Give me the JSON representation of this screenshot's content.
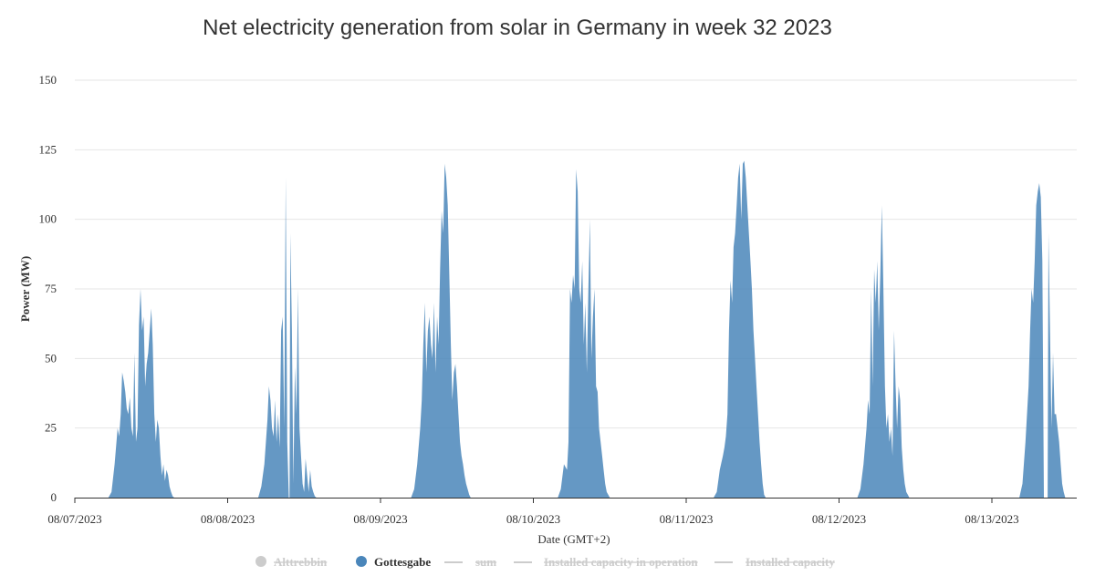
{
  "chart_data": {
    "type": "area",
    "title": "Net electricity generation from solar in Germany in week 32 2023",
    "xlabel": "Date (GMT+2)",
    "ylabel": "Power (MW)",
    "ylim": [
      0,
      150
    ],
    "yticks": [
      0,
      25,
      50,
      75,
      100,
      125,
      150
    ],
    "xticks": [
      "08/07/2023",
      "08/08/2023",
      "08/09/2023",
      "08/10/2023",
      "08/11/2023",
      "08/12/2023",
      "08/13/2023"
    ],
    "xrange_days": [
      0,
      6.55
    ],
    "grid": true,
    "legend_placement": "bottom",
    "colors": {
      "Gottesgabe": "#4a86ba",
      "disabled": "#cccccc",
      "grid": "#e6e6e6",
      "axis": "#333333"
    },
    "legend": [
      {
        "name": "Alttrebbin",
        "symbol": "circle",
        "enabled": false
      },
      {
        "name": "Gottesgabe",
        "symbol": "circle",
        "enabled": true
      },
      {
        "name": "sum",
        "symbol": "line",
        "enabled": false
      },
      {
        "name": "Installed capacity in operation",
        "symbol": "line",
        "enabled": false
      },
      {
        "name": "Installed capacity",
        "symbol": "line",
        "enabled": false
      }
    ],
    "series": [
      {
        "name": "Gottesgabe",
        "days": [
          {
            "x": [
              0.0,
              0.22,
              0.24,
              0.26,
              0.28,
              0.29,
              0.3,
              0.31,
              0.32,
              0.33,
              0.34,
              0.35,
              0.36,
              0.37,
              0.38,
              0.39,
              0.4,
              0.41,
              0.42,
              0.43,
              0.44,
              0.45,
              0.46,
              0.47,
              0.48,
              0.49,
              0.5,
              0.51,
              0.52,
              0.53,
              0.54,
              0.55,
              0.56,
              0.57,
              0.58,
              0.59,
              0.6,
              0.61,
              0.62,
              0.63,
              0.64,
              0.65,
              0.66,
              0.67,
              0.68,
              0.69,
              0.7,
              0.72,
              1.0
            ],
            "y": [
              0,
              0,
              2,
              12,
              25,
              22,
              30,
              45,
              42,
              38,
              32,
              30,
              36,
              25,
              22,
              52,
              20,
              25,
              62,
              75,
              60,
              65,
              40,
              48,
              52,
              60,
              68,
              55,
              30,
              20,
              28,
              25,
              15,
              8,
              12,
              6,
              10,
              8,
              4,
              2,
              0.5,
              0,
              0,
              0,
              0,
              0,
              0,
              0,
              0
            ]
          },
          {
            "x": [
              1.0,
              1.2,
              1.22,
              1.24,
              1.26,
              1.27,
              1.28,
              1.29,
              1.3,
              1.31,
              1.32,
              1.33,
              1.34,
              1.35,
              1.36,
              1.37,
              1.38,
              1.39,
              1.4,
              1.405,
              1.41,
              1.42,
              1.43,
              1.44,
              1.45,
              1.46,
              1.47,
              1.48,
              1.49,
              1.5,
              1.51,
              1.52,
              1.53,
              1.54,
              1.55,
              1.56,
              1.57,
              1.58,
              1.6,
              2.0
            ],
            "y": [
              0,
              0,
              4,
              12,
              28,
              40,
              35,
              25,
              22,
              35,
              20,
              30,
              18,
              60,
              65,
              25,
              115,
              20,
              0,
              0,
              95,
              60,
              5,
              47,
              30,
              75,
              25,
              15,
              5,
              2,
              14,
              8,
              2,
              10,
              4,
              2,
              0.5,
              0,
              0,
              0
            ]
          },
          {
            "x": [
              2.0,
              2.2,
              2.22,
              2.24,
              2.26,
              2.27,
              2.28,
              2.29,
              2.3,
              2.31,
              2.32,
              2.33,
              2.34,
              2.35,
              2.36,
              2.37,
              2.38,
              2.39,
              2.4,
              2.41,
              2.42,
              2.43,
              2.44,
              2.45,
              2.46,
              2.47,
              2.48,
              2.49,
              2.5,
              2.51,
              2.52,
              2.53,
              2.54,
              2.55,
              2.56,
              2.57,
              2.58,
              2.59,
              2.6,
              2.61,
              2.62,
              2.63,
              2.64,
              2.65,
              2.66,
              3.0
            ],
            "y": [
              0,
              0,
              3,
              12,
              25,
              35,
              55,
              70,
              45,
              60,
              65,
              55,
              50,
              70,
              45,
              65,
              55,
              82,
              103,
              95,
              120,
              115,
              105,
              80,
              55,
              35,
              45,
              48,
              40,
              30,
              20,
              15,
              12,
              8,
              5,
              3,
              1,
              0,
              0,
              0,
              0,
              0,
              0,
              0,
              0,
              0
            ]
          },
          {
            "x": [
              3.0,
              3.16,
              3.18,
              3.2,
              3.22,
              3.23,
              3.24,
              3.25,
              3.26,
              3.27,
              3.28,
              3.29,
              3.3,
              3.31,
              3.32,
              3.33,
              3.34,
              3.35,
              3.36,
              3.37,
              3.38,
              3.39,
              3.4,
              3.41,
              3.42,
              3.43,
              3.44,
              3.45,
              3.46,
              3.47,
              3.48,
              3.49,
              3.5,
              3.51,
              3.52,
              3.53,
              3.54,
              3.55,
              3.56,
              3.57,
              3.58,
              3.6,
              4.0
            ],
            "y": [
              0,
              0,
              3,
              12,
              10,
              20,
              75,
              70,
              80,
              75,
              118,
              110,
              75,
              70,
              85,
              55,
              70,
              45,
              75,
              100,
              50,
              65,
              75,
              40,
              38,
              25,
              20,
              15,
              10,
              5,
              2,
              1,
              0,
              0,
              0,
              0,
              0,
              0,
              0,
              0,
              0,
              0,
              0
            ]
          },
          {
            "x": [
              4.0,
              4.18,
              4.2,
              4.22,
              4.24,
              4.25,
              4.26,
              4.27,
              4.28,
              4.29,
              4.3,
              4.31,
              4.32,
              4.33,
              4.34,
              4.35,
              4.36,
              4.37,
              4.38,
              4.39,
              4.4,
              4.41,
              4.42,
              4.43,
              4.44,
              4.45,
              4.46,
              4.47,
              4.48,
              4.49,
              4.5,
              4.51,
              4.52,
              4.53,
              4.54,
              4.55,
              4.56,
              4.58,
              4.6,
              4.62,
              5.0
            ],
            "y": [
              0,
              0,
              2,
              10,
              15,
              18,
              22,
              30,
              60,
              78,
              70,
              90,
              95,
              105,
              115,
              120,
              100,
              120,
              121,
              115,
              105,
              95,
              85,
              75,
              60,
              50,
              40,
              30,
              20,
              12,
              5,
              1,
              0,
              0,
              0,
              0,
              0,
              0,
              0,
              0,
              0
            ]
          },
          {
            "x": [
              5.0,
              5.12,
              5.14,
              5.16,
              5.18,
              5.19,
              5.2,
              5.21,
              5.22,
              5.23,
              5.24,
              5.25,
              5.26,
              5.27,
              5.28,
              5.29,
              5.3,
              5.31,
              5.32,
              5.33,
              5.34,
              5.35,
              5.36,
              5.37,
              5.38,
              5.39,
              5.4,
              5.41,
              5.42,
              5.43,
              5.44,
              5.45,
              5.46,
              5.47,
              5.48,
              5.5,
              5.52,
              6.0
            ],
            "y": [
              0,
              0,
              3,
              12,
              25,
              35,
              30,
              75,
              40,
              82,
              70,
              85,
              60,
              80,
              105,
              75,
              40,
              25,
              30,
              20,
              25,
              15,
              60,
              40,
              25,
              40,
              35,
              18,
              10,
              5,
              2,
              1,
              0,
              0,
              0,
              0,
              0,
              0
            ]
          },
          {
            "x": [
              6.0,
              6.18,
              6.2,
              6.22,
              6.24,
              6.25,
              6.26,
              6.27,
              6.28,
              6.29,
              6.3,
              6.31,
              6.32,
              6.33,
              6.34,
              6.35,
              6.36,
              6.365,
              6.37,
              6.38,
              6.39,
              6.4,
              6.41,
              6.42,
              6.43,
              6.44,
              6.45,
              6.46,
              6.47,
              6.48,
              6.49,
              6.5,
              6.51,
              6.52,
              6.53,
              6.54,
              6.55
            ],
            "y": [
              0,
              0,
              5,
              20,
              40,
              60,
              75,
              70,
              85,
              105,
              110,
              113,
              108,
              85,
              0,
              0,
              0,
              0,
              95,
              60,
              25,
              52,
              30,
              30,
              25,
              20,
              12,
              5,
              2,
              0,
              0,
              0,
              0,
              0,
              0,
              0,
              0
            ]
          }
        ]
      }
    ]
  }
}
